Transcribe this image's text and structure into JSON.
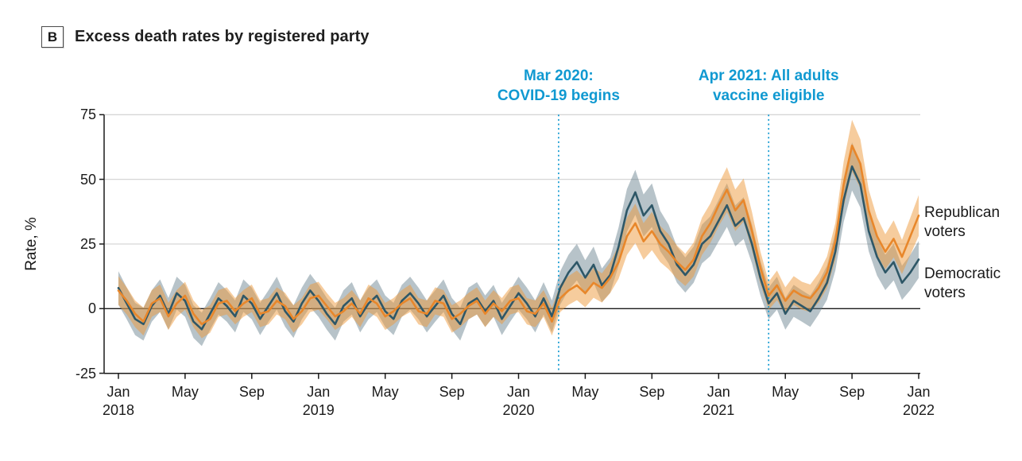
{
  "panel": {
    "label": "B",
    "title": "Excess death rates by registered party"
  },
  "chart_data": {
    "type": "line",
    "title": "Excess death rates by registered party",
    "xlabel": "",
    "ylabel": "Rate, %",
    "ylim": [
      -25,
      75
    ],
    "yticks": [
      -25,
      0,
      25,
      50,
      75
    ],
    "gridlines_at": [
      25,
      50,
      75
    ],
    "zero_line": 0,
    "x_unit": "months since Jan 2018",
    "xlim": [
      0,
      48
    ],
    "xticks": [
      {
        "m": 0,
        "month": "Jan",
        "year": "2018"
      },
      {
        "m": 4,
        "month": "May",
        "year": ""
      },
      {
        "m": 8,
        "month": "Sep",
        "year": ""
      },
      {
        "m": 12,
        "month": "Jan",
        "year": "2019"
      },
      {
        "m": 16,
        "month": "May",
        "year": ""
      },
      {
        "m": 20,
        "month": "Sep",
        "year": ""
      },
      {
        "m": 24,
        "month": "Jan",
        "year": "2020"
      },
      {
        "m": 28,
        "month": "May",
        "year": ""
      },
      {
        "m": 32,
        "month": "Sep",
        "year": ""
      },
      {
        "m": 36,
        "month": "Jan",
        "year": "2021"
      },
      {
        "m": 40,
        "month": "May",
        "year": ""
      },
      {
        "m": 44,
        "month": "Sep",
        "year": ""
      },
      {
        "m": 48,
        "month": "Jan",
        "year": "2022"
      }
    ],
    "annotations": [
      {
        "x_month": 26.4,
        "line1": "Mar 2020:",
        "line2": "COVID-19 begins"
      },
      {
        "x_month": 39.0,
        "line1": "Apr 2021: All adults",
        "line2": "vaccine eligible"
      }
    ],
    "legend_position": "right-of-plot",
    "colors": {
      "annotation": "#1099D1",
      "grid": "#D6D6D6",
      "axis": "#1a1a1a",
      "zero_line": "#1a1a1a"
    },
    "series": [
      {
        "name": "Democratic voters",
        "label": "Democratic voters",
        "line_color": "#2E5767",
        "band_color": "#5F7A88",
        "band_opacity": 0.45,
        "band_hw_base": 6,
        "band_hw_scale": 0.06,
        "x_start": 0,
        "x_step": 0.5,
        "values": [
          8,
          2,
          -4,
          -6,
          1,
          5,
          -2,
          6,
          3,
          -5,
          -8,
          -2,
          4,
          1,
          -3,
          5,
          2,
          -4,
          1,
          6,
          -1,
          -5,
          2,
          7,
          3,
          -2,
          -6,
          1,
          4,
          -3,
          2,
          5,
          -1,
          -4,
          3,
          6,
          2,
          -3,
          1,
          5,
          -2,
          -6,
          2,
          4,
          -1,
          3,
          -4,
          1,
          6,
          2,
          -3,
          4,
          -3,
          8,
          14,
          18,
          12,
          17,
          9,
          13,
          24,
          38,
          45,
          36,
          40,
          30,
          25,
          17,
          13,
          17,
          25,
          28,
          34,
          40,
          32,
          35,
          25,
          12,
          2,
          6,
          -2,
          3,
          1,
          -1,
          4,
          10,
          22,
          42,
          55,
          48,
          30,
          20,
          14,
          18,
          10,
          14,
          19
        ]
      },
      {
        "name": "Republican voters",
        "label": "Republican voters",
        "line_color": "#E8872B",
        "band_color": "#EE9A3C",
        "band_opacity": 0.5,
        "band_hw_base": 5,
        "band_hw_scale": 0.08,
        "x_start": 0,
        "x_step": 0.5,
        "values": [
          7,
          3,
          -2,
          -5,
          2,
          4,
          -3,
          2,
          5,
          -2,
          -6,
          -4,
          2,
          3,
          -1,
          2,
          4,
          -2,
          -1,
          3,
          1,
          -4,
          -1,
          4,
          5,
          1,
          -3,
          -1,
          2,
          -2,
          4,
          2,
          -3,
          -1,
          2,
          4,
          -1,
          -2,
          3,
          2,
          -4,
          -2,
          1,
          3,
          -2,
          2,
          -1,
          3,
          4,
          -1,
          -2,
          2,
          -5,
          4,
          7,
          9,
          6,
          10,
          8,
          12,
          18,
          28,
          33,
          26,
          30,
          25,
          22,
          18,
          15,
          19,
          28,
          33,
          40,
          46,
          38,
          42,
          30,
          16,
          5,
          9,
          3,
          7,
          5,
          4,
          8,
          14,
          26,
          48,
          63,
          56,
          38,
          28,
          22,
          27,
          20,
          28,
          36
        ]
      }
    ]
  }
}
